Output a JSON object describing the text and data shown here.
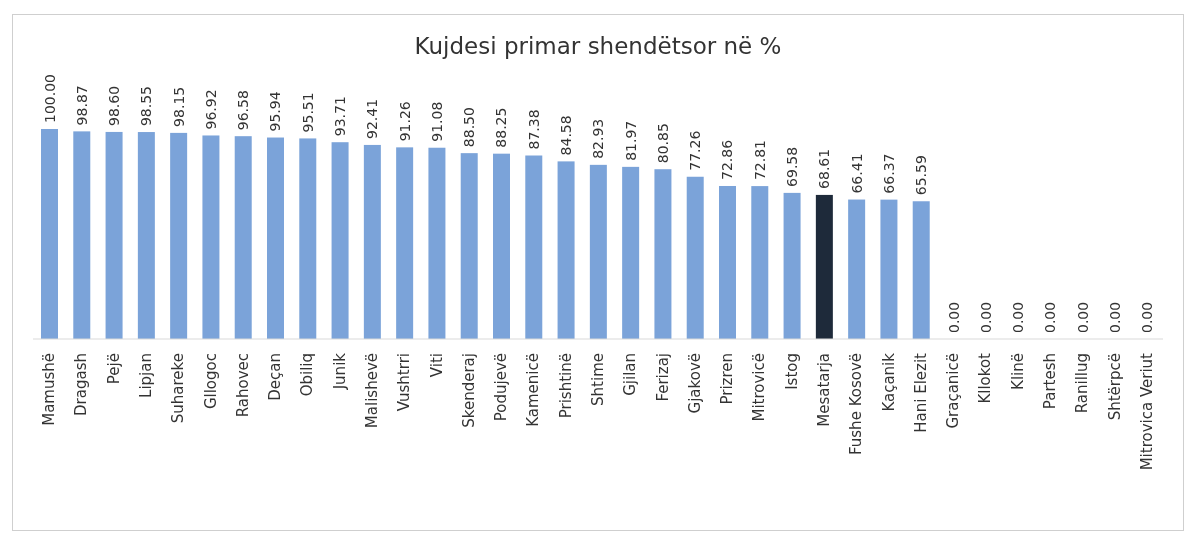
{
  "chart_data": {
    "type": "bar",
    "title": "Kujdesi primar shendëtsor në %",
    "categories": [
      "Mamushë",
      "Dragash",
      "Pejë",
      "Lipjan",
      "Suhareke",
      "Gllogoc",
      "Rahovec",
      "Deçan",
      "Obiliq",
      "Junik",
      "Malishevë",
      "Vushtrri",
      "Viti",
      "Skenderaj",
      "Podujevë",
      "Kamenicë",
      "Prishtinë",
      "Shtime",
      "Gjilan",
      "Ferizaj",
      "Gjakovë",
      "Prizren",
      "Mitrovicë",
      "Istog",
      "Mesatarja",
      "Fushe Kosovë",
      "Kaçanik",
      "Hani Elezit",
      "Graçanicë",
      "Kllokot",
      "Klinë",
      "Partesh",
      "Ranillug",
      "Shtërpcë",
      "Mitrovica Veriut"
    ],
    "values": [
      100.0,
      98.87,
      98.6,
      98.55,
      98.15,
      96.92,
      96.58,
      95.94,
      95.51,
      93.71,
      92.41,
      91.26,
      91.08,
      88.5,
      88.25,
      87.38,
      84.58,
      82.93,
      81.97,
      80.85,
      77.26,
      72.86,
      72.81,
      69.58,
      68.61,
      66.41,
      66.37,
      65.59,
      0,
      0,
      0,
      0,
      0,
      0,
      0
    ],
    "value_labels": [
      "100.00",
      "98.87",
      "98.60",
      "98.55",
      "98.15",
      "96.92",
      "96.58",
      "95.94",
      "95.51",
      "93.71",
      "92.41",
      "91.26",
      "91.08",
      "88.50",
      "88.25",
      "87.38",
      "84.58",
      "82.93",
      "81.97",
      "80.85",
      "77.26",
      "72.86",
      "72.81",
      "69.58",
      "68.61",
      "66.41",
      "66.37",
      "65.59",
      "0.00",
      "0.00",
      "0.00",
      "0.00",
      "0.00",
      "0.00",
      "0.00"
    ],
    "colors": [
      "#7ba3d9",
      "#7ba3d9",
      "#7ba3d9",
      "#7ba3d9",
      "#7ba3d9",
      "#7ba3d9",
      "#7ba3d9",
      "#7ba3d9",
      "#7ba3d9",
      "#7ba3d9",
      "#7ba3d9",
      "#7ba3d9",
      "#7ba3d9",
      "#7ba3d9",
      "#7ba3d9",
      "#7ba3d9",
      "#7ba3d9",
      "#7ba3d9",
      "#7ba3d9",
      "#7ba3d9",
      "#7ba3d9",
      "#7ba3d9",
      "#7ba3d9",
      "#7ba3d9",
      "#1e2a3a",
      "#7ba3d9",
      "#7ba3d9",
      "#7ba3d9",
      "#7ba3d9",
      "#7ba3d9",
      "#7ba3d9",
      "#7ba3d9",
      "#7ba3d9",
      "#7ba3d9",
      "#7ba3d9"
    ],
    "grid": false
  }
}
